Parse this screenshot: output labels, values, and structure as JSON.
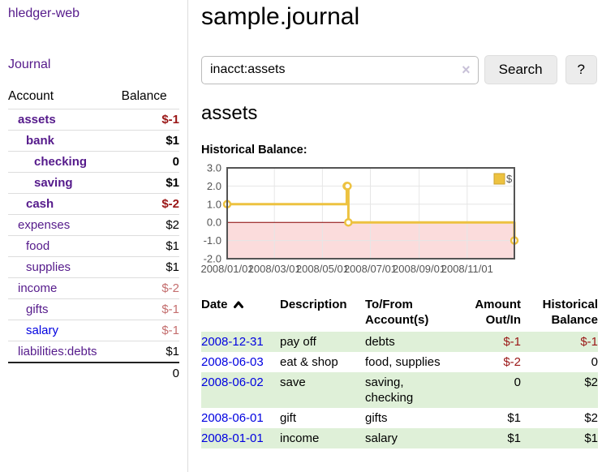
{
  "sidebar": {
    "brand": "hledger-web",
    "nav_journal": "Journal",
    "table": {
      "headers": {
        "account": "Account",
        "balance": "Balance"
      },
      "rows": [
        {
          "name": "assets",
          "depth": 0,
          "bold": true,
          "name_color": "purple",
          "balance": "$-1",
          "balance_color": "neg_strong"
        },
        {
          "name": "bank",
          "depth": 1,
          "bold": true,
          "name_color": "purple",
          "balance": "$1",
          "balance_color": "black"
        },
        {
          "name": "checking",
          "depth": 2,
          "bold": true,
          "name_color": "purple",
          "balance": "0",
          "balance_color": "black"
        },
        {
          "name": "saving",
          "depth": 2,
          "bold": true,
          "name_color": "purple",
          "balance": "$1",
          "balance_color": "black"
        },
        {
          "name": "cash",
          "depth": 1,
          "bold": true,
          "name_color": "purple",
          "balance": "$-2",
          "balance_color": "neg_strong"
        },
        {
          "name": "expenses",
          "depth": 0,
          "bold": false,
          "name_color": "purple",
          "balance": "$2",
          "balance_color": "black"
        },
        {
          "name": "food",
          "depth": 1,
          "bold": false,
          "name_color": "purple",
          "balance": "$1",
          "balance_color": "black"
        },
        {
          "name": "supplies",
          "depth": 1,
          "bold": false,
          "name_color": "purple",
          "balance": "$1",
          "balance_color": "black"
        },
        {
          "name": "income",
          "depth": 0,
          "bold": false,
          "name_color": "purple",
          "balance": "$-2",
          "balance_color": "neg_muted"
        },
        {
          "name": "gifts",
          "depth": 1,
          "bold": false,
          "name_color": "purple",
          "balance": "$-1",
          "balance_color": "neg_muted"
        },
        {
          "name": "salary",
          "depth": 1,
          "bold": false,
          "name_color": "blue",
          "balance": "$-1",
          "balance_color": "neg_muted"
        },
        {
          "name": "liabilities:debts",
          "depth": 0,
          "bold": false,
          "name_color": "purple",
          "balance": "$1",
          "balance_color": "black"
        }
      ],
      "total": "0"
    }
  },
  "main": {
    "title": "sample.journal",
    "search": {
      "value": "inacct:assets",
      "clear_icon": "×",
      "button_label": "Search",
      "help_label": "?"
    },
    "account_heading": "assets",
    "chart_heading": "Historical Balance:",
    "register": {
      "headers": {
        "date": "Date",
        "description": "Description",
        "accounts": "To/From\nAccount(s)",
        "amount": "Amount\nOut/In",
        "balance": "Historical\nBalance"
      },
      "sort": {
        "column": "date",
        "direction": "ascending"
      },
      "rows": [
        {
          "date": "2008-12-31",
          "description": "pay off",
          "accounts": "debts",
          "amount": "$-1",
          "amount_color": "neg_strong",
          "balance": "$-1",
          "balance_color": "neg_strong",
          "shaded": true
        },
        {
          "date": "2008-06-03",
          "description": "eat & shop",
          "accounts": "food, supplies",
          "amount": "$-2",
          "amount_color": "neg_strong",
          "balance": "0",
          "balance_color": "black",
          "shaded": false
        },
        {
          "date": "2008-06-02",
          "description": "save",
          "accounts": "saving,\nchecking",
          "amount": "0",
          "amount_color": "black",
          "balance": "$2",
          "balance_color": "black",
          "shaded": true
        },
        {
          "date": "2008-06-01",
          "description": "gift",
          "accounts": "gifts",
          "amount": "$1",
          "amount_color": "black",
          "balance": "$2",
          "balance_color": "black",
          "shaded": false
        },
        {
          "date": "2008-01-01",
          "description": "income",
          "accounts": "salary",
          "amount": "$1",
          "amount_color": "black",
          "balance": "$1",
          "balance_color": "black",
          "shaded": true
        }
      ]
    }
  },
  "chart_data": {
    "type": "line",
    "title": "Historical Balance:",
    "series": [
      {
        "name": "$",
        "color": "#edc240",
        "step": true,
        "points": [
          [
            "2008-01-01",
            1
          ],
          [
            "2008-06-01",
            2
          ],
          [
            "2008-06-02",
            2
          ],
          [
            "2008-06-03",
            0
          ],
          [
            "2008-12-31",
            -1
          ]
        ]
      }
    ],
    "xlim": [
      "2008-01-01",
      "2008-12-31"
    ],
    "ylim": [
      -2,
      3
    ],
    "x_tick_labels": [
      "2008/01/01",
      "2008/03/01",
      "2008/05/01",
      "2008/07/01",
      "2008/09/01",
      "2008/11/01"
    ],
    "y_tick_labels": [
      "3.0",
      "2.0",
      "1.0",
      "0.0",
      "-1.0",
      "-2.0"
    ],
    "grid": true,
    "legend": {
      "label": "$",
      "position": "top-right"
    },
    "negative_zone_fill": "#fbdcdc",
    "zero_line_color": "#8b0000",
    "plot_border_color": "#545454",
    "tick_label_color": "#545454"
  },
  "colors": {
    "link_purple": "#551a8b",
    "link_blue": "#0000e0",
    "negative_strong": "#9a1616",
    "negative_muted": "#c46e6e",
    "row_green": "#dff0d8",
    "series_yellow": "#edc240"
  }
}
